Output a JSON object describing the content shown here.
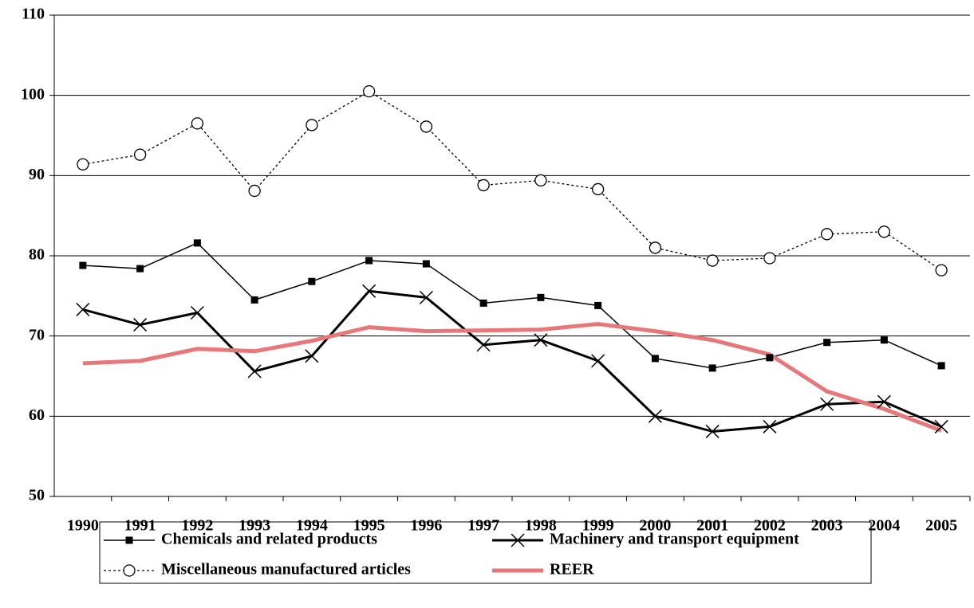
{
  "chart_data": {
    "type": "line",
    "categories": [
      "1990",
      "1991",
      "1992",
      "1993",
      "1994",
      "1995",
      "1996",
      "1997",
      "1998",
      "1999",
      "2000",
      "2001",
      "2002",
      "2003",
      "2004",
      "2005"
    ],
    "series": [
      {
        "name": "Chemicals and related products",
        "color": "#000000",
        "marker": "square",
        "line": "thin",
        "values": [
          78.8,
          78.4,
          81.6,
          74.5,
          76.8,
          79.4,
          79.0,
          74.1,
          74.8,
          73.8,
          67.2,
          66.0,
          67.3,
          69.2,
          69.5,
          66.3
        ]
      },
      {
        "name": "Machinery and transport equipment",
        "color": "#000000",
        "marker": "x",
        "line": "thick",
        "values": [
          73.3,
          71.4,
          72.9,
          65.6,
          67.5,
          75.6,
          74.8,
          68.9,
          69.5,
          66.9,
          60.0,
          58.1,
          58.7,
          61.5,
          61.8,
          58.7
        ]
      },
      {
        "name": "Miscellaneous manufactured articles",
        "color": "#000000",
        "marker": "circle",
        "line": "dotted",
        "values": [
          91.4,
          92.6,
          96.5,
          88.1,
          96.3,
          100.5,
          96.1,
          88.8,
          89.4,
          88.3,
          81.0,
          79.4,
          79.7,
          82.7,
          83.0,
          78.2
        ]
      },
      {
        "name": "REER",
        "color": "#e8777a",
        "marker": "none",
        "line": "band",
        "values": [
          66.6,
          66.9,
          68.4,
          68.1,
          69.4,
          71.1,
          70.6,
          70.7,
          70.8,
          71.5,
          70.6,
          69.5,
          67.7,
          63.1,
          60.9,
          58.2
        ]
      }
    ],
    "ylim": [
      50,
      110
    ],
    "yticks": [
      50,
      60,
      70,
      80,
      90,
      100,
      110
    ],
    "grid": true,
    "legend": "bottom"
  }
}
